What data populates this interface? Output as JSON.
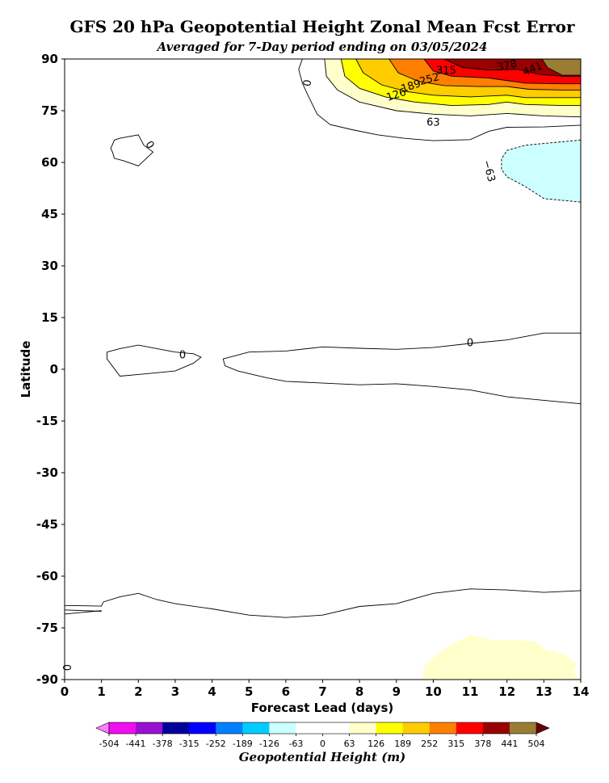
{
  "chart_data": {
    "type": "contour",
    "title": "GFS 20 hPa Geopotential Height Zonal Mean Fcst Error",
    "subtitle": "Averaged for 7-Day period ending on 03/05/2024",
    "xlabel": "Forecast Lead (days)",
    "ylabel": "Latitude",
    "xlim": [
      0,
      14
    ],
    "ylim": [
      -90,
      90
    ],
    "xticks": [
      0,
      1,
      2,
      3,
      4,
      5,
      6,
      7,
      8,
      9,
      10,
      11,
      12,
      13,
      14
    ],
    "yticks": [
      90,
      75,
      60,
      45,
      30,
      15,
      0,
      -15,
      -30,
      -45,
      -60,
      -75,
      -90
    ],
    "colorbar": {
      "label": "Geopotential Height (m)",
      "levels": [
        -504,
        -441,
        -378,
        -315,
        -252,
        -189,
        -126,
        -63,
        0,
        63,
        126,
        189,
        252,
        315,
        378,
        441,
        504
      ],
      "colors": [
        "#f00ff0",
        "#9a10d0",
        "#00009c",
        "#0000ff",
        "#0080ff",
        "#00ccff",
        "#ccffff",
        "#ffffff",
        "#ffffff",
        "#ffffcc",
        "#ffff00",
        "#ffcc00",
        "#ff8000",
        "#ff0000",
        "#990000",
        "#9a7d33"
      ],
      "under_color": "#ff80ff",
      "over_color": "#6a0000"
    },
    "filled_regions": [
      {
        "level": 63,
        "color": "#ffffcc",
        "points": [
          [
            7.05,
            90
          ],
          [
            7.1,
            85
          ],
          [
            7.4,
            81
          ],
          [
            8,
            77.5
          ],
          [
            9,
            75
          ],
          [
            10,
            74
          ],
          [
            11,
            73.5
          ],
          [
            12,
            74.2
          ],
          [
            13,
            73.5
          ],
          [
            14,
            73.2
          ],
          [
            14,
            90
          ]
        ]
      },
      {
        "level": 126,
        "color": "#ffff00",
        "points": [
          [
            7.5,
            90
          ],
          [
            7.6,
            85
          ],
          [
            8,
            81.5
          ],
          [
            8.7,
            79
          ],
          [
            9.5,
            77.5
          ],
          [
            10.5,
            76.5
          ],
          [
            11.5,
            76.8
          ],
          [
            12,
            77.5
          ],
          [
            12.5,
            76.8
          ],
          [
            13.5,
            76.5
          ],
          [
            14,
            76.5
          ],
          [
            14,
            90
          ]
        ]
      },
      {
        "level": 189,
        "color": "#ffcc00",
        "points": [
          [
            7.9,
            90
          ],
          [
            8.1,
            86
          ],
          [
            8.6,
            82.5
          ],
          [
            9.3,
            80.5
          ],
          [
            10,
            79.5
          ],
          [
            11,
            79
          ],
          [
            12,
            79.5
          ],
          [
            12.5,
            78.8
          ],
          [
            13.5,
            78.8
          ],
          [
            14,
            78.8
          ],
          [
            14,
            90
          ]
        ]
      },
      {
        "level": 252,
        "color": "#ff8000",
        "points": [
          [
            8.8,
            90
          ],
          [
            9.05,
            86
          ],
          [
            9.6,
            83.5
          ],
          [
            10.3,
            82.3
          ],
          [
            11.2,
            82
          ],
          [
            12,
            82
          ],
          [
            12.6,
            81.2
          ],
          [
            13.5,
            81
          ],
          [
            14,
            81
          ],
          [
            14,
            90
          ]
        ]
      },
      {
        "level": 315,
        "color": "#ff0000",
        "points": [
          [
            9.75,
            90
          ],
          [
            10,
            86.5
          ],
          [
            10.5,
            85
          ],
          [
            11.5,
            84.5
          ],
          [
            12.5,
            83
          ],
          [
            13.5,
            82.8
          ],
          [
            14,
            82.8
          ],
          [
            14,
            90
          ]
        ]
      },
      {
        "level": 378,
        "color": "#990000",
        "points": [
          [
            10.3,
            90
          ],
          [
            10.8,
            87.5
          ],
          [
            11.5,
            86.8
          ],
          [
            12.3,
            87
          ],
          [
            12.9,
            85.5
          ],
          [
            13.5,
            85
          ],
          [
            14,
            85
          ],
          [
            14,
            90
          ]
        ]
      },
      {
        "level": 441,
        "color": "#9a7d33",
        "points": [
          [
            12.95,
            90
          ],
          [
            13.1,
            87.5
          ],
          [
            13.5,
            85.3
          ],
          [
            14,
            85.3
          ],
          [
            14,
            90
          ]
        ]
      },
      {
        "level": -63,
        "color": "#ccffff",
        "points": [
          [
            14,
            66.5
          ],
          [
            12.5,
            65
          ],
          [
            12,
            63.5
          ],
          [
            11.85,
            61
          ],
          [
            11.85,
            58
          ],
          [
            12,
            55.8
          ],
          [
            12.5,
            53
          ],
          [
            13,
            49.5
          ],
          [
            14,
            48.5
          ]
        ]
      },
      {
        "level": 63,
        "color": "#ffffcc",
        "points": [
          [
            9.7,
            -90
          ],
          [
            9.75,
            -86
          ],
          [
            10.3,
            -81
          ],
          [
            11,
            -77
          ],
          [
            11.6,
            -78.5
          ],
          [
            12.3,
            -78.5
          ],
          [
            12.8,
            -79.2
          ],
          [
            13,
            -81
          ],
          [
            13.6,
            -83
          ],
          [
            13.9,
            -85.5
          ],
          [
            13.8,
            -88
          ],
          [
            14,
            -90
          ]
        ]
      }
    ],
    "contour_lines": [
      {
        "level": 0,
        "label": "0",
        "points": [
          [
            6.45,
            90
          ],
          [
            6.35,
            87
          ],
          [
            6.45,
            83
          ],
          [
            6.6,
            79.5
          ],
          [
            6.85,
            74
          ],
          [
            7.2,
            71
          ],
          [
            7.8,
            69.5
          ],
          [
            8.5,
            68
          ],
          [
            9.2,
            67
          ],
          [
            10,
            66.3
          ],
          [
            11,
            66.6
          ],
          [
            11.5,
            69
          ],
          [
            12,
            70.2
          ],
          [
            13,
            70.3
          ],
          [
            14,
            70.8
          ]
        ]
      },
      {
        "level": 63,
        "label": "63",
        "points": [
          [
            7.05,
            90
          ],
          [
            7.1,
            85
          ],
          [
            7.4,
            81
          ],
          [
            8,
            77.5
          ],
          [
            9,
            75
          ],
          [
            10,
            74
          ],
          [
            11,
            73.5
          ],
          [
            12,
            74.2
          ],
          [
            13,
            73.5
          ],
          [
            14,
            73.2
          ]
        ]
      },
      {
        "level": 126,
        "label": "126",
        "points": [
          [
            7.5,
            90
          ],
          [
            7.6,
            85
          ],
          [
            8,
            81.5
          ],
          [
            8.7,
            79
          ],
          [
            9.5,
            77.5
          ],
          [
            10.5,
            76.5
          ],
          [
            11.5,
            76.8
          ],
          [
            12,
            77.5
          ],
          [
            12.5,
            76.8
          ],
          [
            13.5,
            76.5
          ],
          [
            14,
            76.5
          ]
        ]
      },
      {
        "level": 189,
        "label": "189",
        "points": [
          [
            7.9,
            90
          ],
          [
            8.1,
            86
          ],
          [
            8.6,
            82.5
          ],
          [
            9.3,
            80.5
          ],
          [
            10,
            79.5
          ],
          [
            11,
            79
          ],
          [
            12,
            79.5
          ],
          [
            12.5,
            78.8
          ],
          [
            13.5,
            78.8
          ],
          [
            14,
            78.8
          ]
        ]
      },
      {
        "level": 252,
        "label": "252",
        "points": [
          [
            8.8,
            90
          ],
          [
            9.05,
            86
          ],
          [
            9.6,
            83.5
          ],
          [
            10.3,
            82.3
          ],
          [
            11.2,
            82
          ],
          [
            12,
            82
          ],
          [
            12.6,
            81.2
          ],
          [
            13.5,
            81
          ],
          [
            14,
            81
          ]
        ]
      },
      {
        "level": 315,
        "label": "315",
        "points": [
          [
            9.75,
            90
          ],
          [
            10,
            86.5
          ],
          [
            10.5,
            85
          ],
          [
            11.5,
            84.5
          ],
          [
            12.5,
            83
          ],
          [
            13.5,
            82.8
          ],
          [
            14,
            82.8
          ]
        ]
      },
      {
        "level": 378,
        "label": "378",
        "points": [
          [
            10.3,
            90
          ],
          [
            10.8,
            87.5
          ],
          [
            11.5,
            86.8
          ],
          [
            12.3,
            87
          ],
          [
            12.9,
            85.5
          ],
          [
            13.5,
            85
          ],
          [
            14,
            85
          ]
        ]
      },
      {
        "level": 441,
        "label": "441",
        "points": [
          [
            12.95,
            90
          ],
          [
            13.1,
            87.5
          ],
          [
            13.5,
            85.3
          ],
          [
            14,
            85.3
          ]
        ]
      },
      {
        "level": -63,
        "label": "−63",
        "dashed": true,
        "points": [
          [
            14,
            66.5
          ],
          [
            12.5,
            65
          ],
          [
            12,
            63.5
          ],
          [
            11.85,
            61
          ],
          [
            11.85,
            58
          ],
          [
            12,
            55.8
          ],
          [
            12.5,
            53
          ],
          [
            13,
            49.5
          ],
          [
            14,
            48.5
          ]
        ]
      },
      {
        "level": 0,
        "label": "0",
        "closed": true,
        "points": [
          [
            2,
            68
          ],
          [
            2.15,
            65
          ],
          [
            2.4,
            63
          ],
          [
            2,
            59
          ],
          [
            1.6,
            60.5
          ],
          [
            1.35,
            61.2
          ],
          [
            1.3,
            63
          ],
          [
            1.25,
            64
          ],
          [
            1.35,
            66.5
          ],
          [
            1.5,
            67
          ]
        ]
      },
      {
        "level": 0,
        "label": "0",
        "closed": true,
        "points": [
          [
            1.15,
            5
          ],
          [
            1.5,
            6
          ],
          [
            2,
            7
          ],
          [
            2.5,
            6
          ],
          [
            3,
            5
          ],
          [
            3.5,
            4.5
          ],
          [
            3.7,
            3.5
          ],
          [
            3.5,
            1.8
          ],
          [
            3,
            -0.5
          ],
          [
            2.5,
            -1
          ],
          [
            2,
            -1.5
          ],
          [
            1.5,
            -2
          ],
          [
            1.15,
            3
          ]
        ]
      },
      {
        "level": 0,
        "label": "0",
        "points": [
          [
            14,
            10.5
          ],
          [
            13,
            10.5
          ],
          [
            12,
            8.5
          ],
          [
            11,
            7.5
          ],
          [
            10,
            6.3
          ],
          [
            9,
            5.8
          ],
          [
            8,
            6.1
          ],
          [
            7,
            6.5
          ],
          [
            6,
            5.3
          ],
          [
            5,
            5
          ],
          [
            4.3,
            3
          ],
          [
            4.35,
            1
          ],
          [
            4.7,
            -0.5
          ],
          [
            5.1,
            -1.5
          ],
          [
            5.5,
            -2.5
          ],
          [
            6,
            -3.5
          ],
          [
            7,
            -4
          ],
          [
            8,
            -4.5
          ],
          [
            9,
            -4.2
          ],
          [
            10,
            -5
          ],
          [
            11,
            -6
          ],
          [
            12,
            -8
          ],
          [
            13,
            -9
          ],
          [
            14,
            -10
          ]
        ]
      },
      {
        "level": 0,
        "label": "0",
        "points": [
          [
            0,
            -68.5
          ],
          [
            1,
            -68.7
          ],
          [
            1.05,
            -67.5
          ],
          [
            1.5,
            -66
          ],
          [
            2,
            -65
          ],
          [
            2.5,
            -66.8
          ],
          [
            3,
            -68
          ],
          [
            4,
            -69.5
          ],
          [
            5,
            -71.3
          ],
          [
            6,
            -72
          ],
          [
            7,
            -71.3
          ],
          [
            8,
            -68.8
          ],
          [
            9,
            -68
          ],
          [
            9.5,
            -66.5
          ],
          [
            10,
            -65
          ],
          [
            11,
            -63.7
          ],
          [
            12,
            -64
          ],
          [
            13,
            -64.7
          ],
          [
            14,
            -64.2
          ]
        ]
      },
      {
        "level": 0,
        "label": "0",
        "points": [
          [
            0,
            -71
          ],
          [
            1,
            -70
          ]
        ]
      },
      {
        "level": 0,
        "label": "0",
        "points": [
          [
            0,
            -69.8
          ],
          [
            1,
            -70.2
          ]
        ]
      }
    ],
    "contour_labels": [
      {
        "text": "0",
        "x": 6.6,
        "y": 83,
        "rotation": 80
      },
      {
        "text": "63",
        "x": 10,
        "y": 71.5,
        "rotation": -2
      },
      {
        "text": "126",
        "x": 9,
        "y": 79.5,
        "rotation": 18
      },
      {
        "text": "189",
        "x": 9.4,
        "y": 82,
        "rotation": 18
      },
      {
        "text": "252",
        "x": 9.9,
        "y": 84,
        "rotation": 15
      },
      {
        "text": "315",
        "x": 10.35,
        "y": 86.5,
        "rotation": 0
      },
      {
        "text": "378",
        "x": 12,
        "y": 88,
        "rotation": 12
      },
      {
        "text": "441",
        "x": 12.7,
        "y": 87,
        "rotation": 22
      },
      {
        "text": "−63",
        "x": 11.5,
        "y": 57.5,
        "rotation": -75
      },
      {
        "text": "0",
        "x": 2.3,
        "y": 65,
        "rotation": -55
      },
      {
        "text": "0",
        "x": 3.2,
        "y": 4,
        "rotation": 0
      },
      {
        "text": "0",
        "x": 11,
        "y": 7.5,
        "rotation": 0
      },
      {
        "text": "0",
        "x": 0.1,
        "y": -86.5,
        "rotation": 90
      }
    ]
  }
}
